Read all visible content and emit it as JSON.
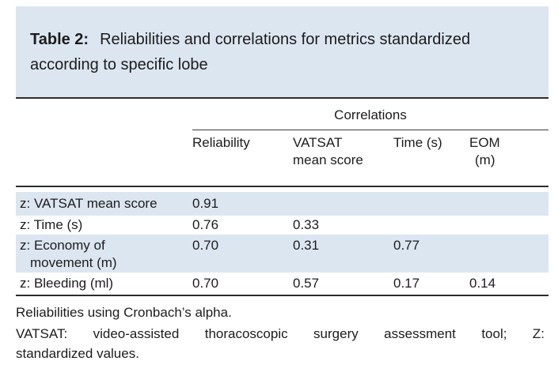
{
  "caption": {
    "label": "Table 2:",
    "text": "Reliabilities and correlations for metrics standardized according to specific lobe"
  },
  "table": {
    "spanner_label": "Correlations",
    "columns": [
      "Reliability",
      "VATSAT mean score",
      "Time (s)",
      "EOM (m)"
    ],
    "rows": [
      {
        "label": "z: VATSAT mean score",
        "values": [
          "0.91",
          "",
          "",
          ""
        ]
      },
      {
        "label": "z: Time (s)",
        "values": [
          "0.76",
          "0.33",
          "",
          ""
        ]
      },
      {
        "label": "z: Economy of movement (m)",
        "values": [
          "0.70",
          "0.31",
          "0.77",
          ""
        ]
      },
      {
        "label": "z: Bleeding (ml)",
        "values": [
          "0.70",
          "0.57",
          "0.17",
          "0.14"
        ]
      }
    ]
  },
  "footnotes": {
    "cronbach": "Reliabilities using Cronbach’s alpha.",
    "vatsat_line1": "VATSAT: video-assisted thoracoscopic surgery assessment tool; Z:",
    "vatsat_line2": "standardized values."
  },
  "colors": {
    "panel_blue": "#dce6f1",
    "stripe_blue": "#dce6f1",
    "rule_dark": "#2d2d2d",
    "text_dark": "#1c1c1c"
  }
}
